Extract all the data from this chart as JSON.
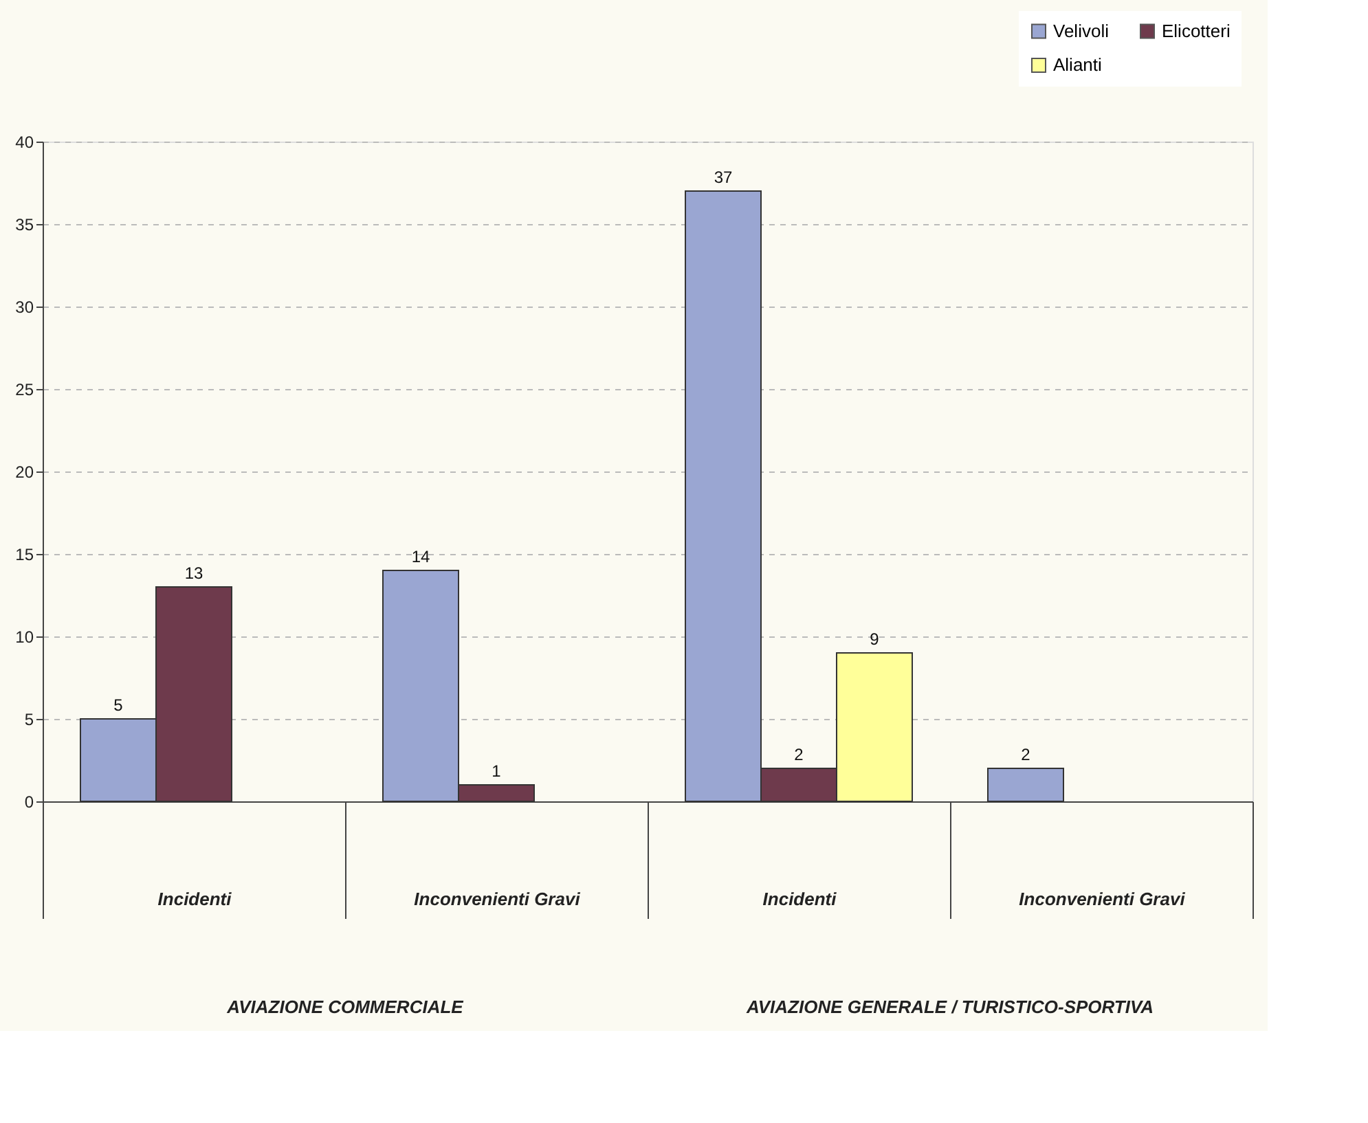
{
  "chart_data": {
    "type": "bar",
    "categories": [
      "Incidenti",
      "Inconvenienti Gravi",
      "Incidenti",
      "Inconvenienti Gravi"
    ],
    "series": [
      {
        "name": "Velivoli",
        "color": "#9aa6d2",
        "values": [
          5,
          14,
          37,
          2
        ]
      },
      {
        "name": "Elicotteri",
        "color": "#6e3a4c",
        "values": [
          13,
          1,
          2,
          null
        ]
      },
      {
        "name": "Alianti",
        "color": "#ffff99",
        "values": [
          null,
          null,
          9,
          null
        ]
      }
    ],
    "annotations": [
      "AVIAZIONE COMMERCIALE",
      "AVIAZIONE GENERALE / TURISTICO-SPORTIVA"
    ],
    "ylim": [
      0,
      40
    ],
    "yticks": [
      0,
      5,
      10,
      15,
      20,
      25,
      30,
      35,
      40
    ],
    "grid": "y",
    "legend": "top right",
    "data_labels": true
  }
}
